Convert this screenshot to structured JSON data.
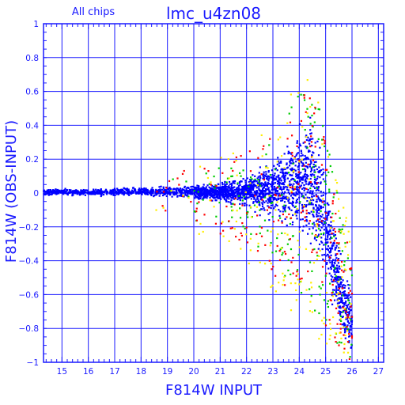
{
  "chart_data": {
    "type": "scatter",
    "title": "lmc_u4zn08",
    "subtitle": "All chips",
    "xlabel": "F814W INPUT",
    "ylabel": "F814W (OBS-INPUT)",
    "xlim": [
      14.3,
      27.2
    ],
    "ylim": [
      -1,
      1
    ],
    "x_ticks": [
      15,
      16,
      17,
      18,
      19,
      20,
      21,
      22,
      23,
      24,
      25,
      26,
      27
    ],
    "x_tick_labels": [
      "15",
      "16",
      "17",
      "18",
      "19",
      "20",
      "21",
      "22",
      "23",
      "24",
      "25",
      "26",
      "27"
    ],
    "y_ticks": [
      -1,
      -0.8,
      -0.6,
      -0.4,
      -0.2,
      0,
      0.2,
      0.4,
      0.6,
      0.8,
      1
    ],
    "y_tick_labels": [
      "−1",
      "−0.8",
      "−0.6",
      "−0.4",
      "−0.2",
      "0",
      "0.2",
      "0.4",
      "0.6",
      "0.8",
      "1"
    ],
    "grid": true,
    "colors": {
      "axis": "#1a1aff",
      "grid": "#1a1aff",
      "main_series": "#0000ff",
      "series_2": "#00cc00",
      "series_3": "#ff0000",
      "series_4": "#ffee00"
    },
    "series": [
      {
        "color": "#0000ff",
        "envelope": [
          {
            "x": 14.3,
            "lo": -0.02,
            "hi": 0.03
          },
          {
            "x": 16.0,
            "lo": -0.02,
            "hi": 0.03
          },
          {
            "x": 18.0,
            "lo": -0.02,
            "hi": 0.04
          },
          {
            "x": 20.0,
            "lo": -0.04,
            "hi": 0.05
          },
          {
            "x": 21.0,
            "lo": -0.06,
            "hi": 0.07
          },
          {
            "x": 22.0,
            "lo": -0.1,
            "hi": 0.12
          },
          {
            "x": 23.0,
            "lo": -0.18,
            "hi": 0.22
          },
          {
            "x": 24.0,
            "lo": -0.3,
            "hi": 0.45
          },
          {
            "x": 24.5,
            "lo": -0.4,
            "hi": 0.55
          },
          {
            "x": 25.0,
            "lo": -0.55,
            "hi": 0.2
          },
          {
            "x": 25.5,
            "lo": -0.85,
            "hi": -0.25
          },
          {
            "x": 26.0,
            "lo": -1.0,
            "hi": -0.6
          }
        ]
      },
      {
        "color": "#00cc00",
        "envelope": [
          {
            "x": 18.5,
            "lo": -0.1,
            "hi": 0.08
          },
          {
            "x": 22.0,
            "lo": -0.25,
            "hi": 0.2
          },
          {
            "x": 24.5,
            "lo": -0.7,
            "hi": 0.7
          },
          {
            "x": 26.0,
            "lo": -1.0,
            "hi": -0.4
          }
        ]
      },
      {
        "color": "#ff0000",
        "envelope": [
          {
            "x": 18.5,
            "lo": -0.1,
            "hi": 0.08
          },
          {
            "x": 22.0,
            "lo": -0.3,
            "hi": 0.25
          },
          {
            "x": 24.5,
            "lo": -0.75,
            "hi": 0.65
          },
          {
            "x": 26.0,
            "lo": -1.0,
            "hi": -0.4
          }
        ]
      },
      {
        "color": "#ffee00",
        "envelope": [
          {
            "x": 18.5,
            "lo": -0.15,
            "hi": 0.1
          },
          {
            "x": 22.0,
            "lo": -0.4,
            "hi": 0.3
          },
          {
            "x": 24.5,
            "lo": -0.85,
            "hi": 0.75
          },
          {
            "x": 26.0,
            "lo": -1.0,
            "hi": -0.3
          }
        ]
      }
    ]
  }
}
